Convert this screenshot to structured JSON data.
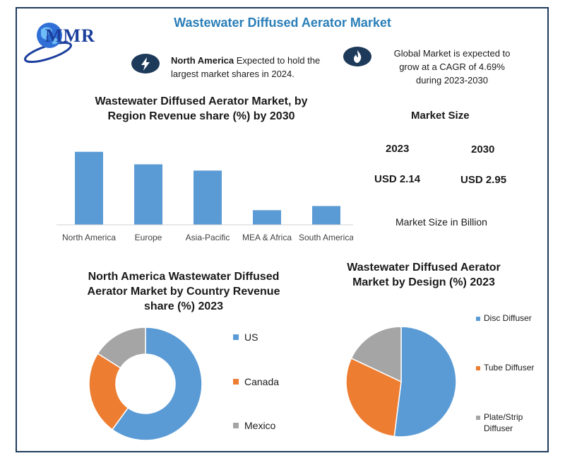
{
  "header": {
    "title": "Wastewater Diffused Aerator Market",
    "logo_text": "MMR"
  },
  "highlights": {
    "na_bold": "North America",
    "na_rest": " Expected to hold the",
    "na_line2": "largest market shares in 2024.",
    "cagr_line1": "Global Market is expected to",
    "cagr_line2": "grow at a CAGR of 4.69%",
    "cagr_line3": "during 2023-2030"
  },
  "market_size": {
    "heading": "Market Size",
    "year1": "2023",
    "year2": "2030",
    "value1": "USD 2.14",
    "value2": "USD 2.95",
    "footer": "Market Size in Billion"
  },
  "colors": {
    "blue": "#5b9bd5",
    "orange": "#ed7d31",
    "gray": "#a5a5a5",
    "title_blue": "#2a7fb8",
    "navy": "#1d3a5a"
  },
  "icons": {
    "na_badge": "lightning-icon",
    "cagr_badge": "flame-icon",
    "logo": "globe-icon"
  },
  "chart_data": [
    {
      "type": "bar",
      "title_line1": "Wastewater Diffused Aerator Market, by",
      "title_line2": "Region Revenue share (%) by 2030",
      "categories": [
        "North America",
        "Europe",
        "Asia-Pacific",
        "MEA & Africa",
        "South America"
      ],
      "values": [
        35,
        29,
        26,
        7,
        9
      ],
      "ylim": [
        0,
        40
      ],
      "grid": false,
      "legend": "none"
    },
    {
      "type": "pie",
      "variant": "donut",
      "title_line1": "North America Wastewater Diffused",
      "title_line2": "Aerator Market by Country Revenue",
      "title_line3": "share (%) 2023",
      "labels": [
        "US",
        "Canada",
        "Mexico"
      ],
      "values": [
        60,
        24,
        16
      ],
      "legend": "right"
    },
    {
      "type": "pie",
      "title_line1": "Wastewater Diffused Aerator",
      "title_line2": "Market by Design (%) 2023",
      "labels": [
        "Disc Diffuser",
        "Tube Diffuser",
        "Plate/Strip"
      ],
      "label3_line2": "Diffuser",
      "values": [
        52,
        30,
        18
      ],
      "legend": "right"
    }
  ]
}
